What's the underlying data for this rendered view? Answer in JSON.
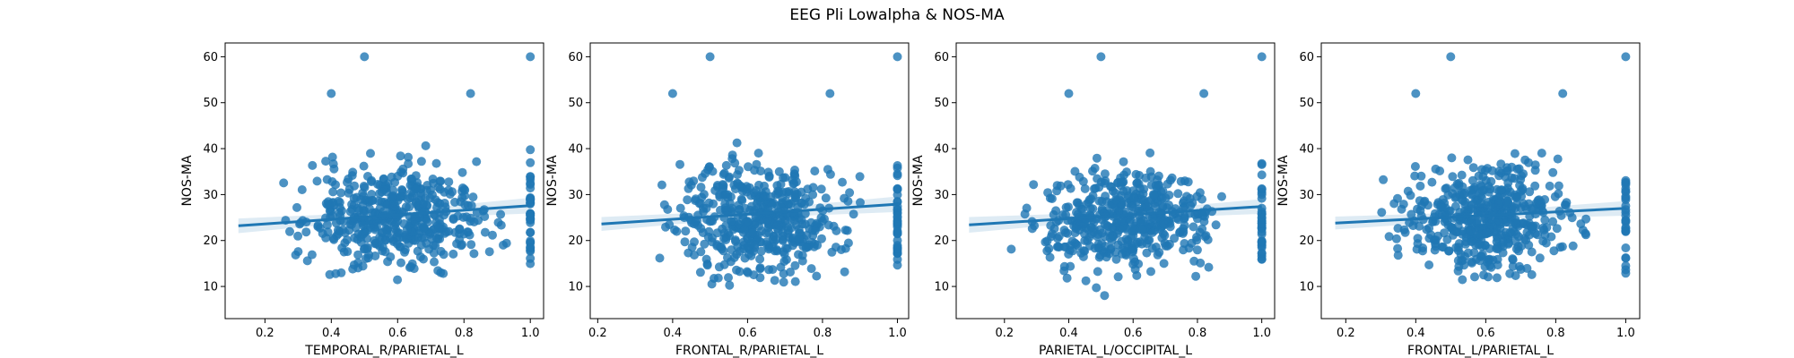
{
  "figure": {
    "title": "EEG Pli Lowalpha & NOS-MA"
  },
  "colors": {
    "series": "#1f77b4"
  },
  "chart_data": [
    {
      "type": "scatter",
      "xlabel": "TEMPORAL_R/PARIETAL_L",
      "ylabel": "NOS-MA",
      "xlim": [
        0.08,
        1.04
      ],
      "ylim": [
        3,
        63
      ],
      "xticks": [
        "0.2",
        "0.4",
        "0.6",
        "0.8",
        "1.0"
      ],
      "yticks": [
        "10",
        "20",
        "30",
        "40",
        "50",
        "60"
      ],
      "regression": {
        "x": [
          0.12,
          1.0
        ],
        "y": [
          23.2,
          27.6
        ],
        "ci_halfwidth": [
          1.6,
          0.8,
          1.7
        ]
      },
      "seed": 11
    },
    {
      "type": "scatter",
      "xlabel": "FRONTAL_R/PARIETAL_L",
      "ylabel": "NOS-MA",
      "xlim": [
        0.18,
        1.03
      ],
      "ylim": [
        3,
        63
      ],
      "xticks": [
        "0.2",
        "0.4",
        "0.6",
        "0.8",
        "1.0"
      ],
      "yticks": [
        "10",
        "20",
        "30",
        "40",
        "50",
        "60"
      ],
      "regression": {
        "x": [
          0.21,
          1.0
        ],
        "y": [
          23.6,
          27.9
        ],
        "ci_halfwidth": [
          1.5,
          0.8,
          1.7
        ]
      },
      "seed": 23
    },
    {
      "type": "scatter",
      "xlabel": "PARIETAL_L/OCCIPITAL_L",
      "ylabel": "NOS-MA",
      "xlim": [
        0.05,
        1.04
      ],
      "ylim": [
        3,
        63
      ],
      "xticks": [
        "0.2",
        "0.4",
        "0.6",
        "0.8",
        "1.0"
      ],
      "yticks": [
        "10",
        "20",
        "30",
        "40",
        "50",
        "60"
      ],
      "regression": {
        "x": [
          0.09,
          1.0
        ],
        "y": [
          23.4,
          27.4
        ],
        "ci_halfwidth": [
          1.7,
          0.8,
          1.6
        ]
      },
      "seed": 37
    },
    {
      "type": "scatter",
      "xlabel": "FRONTAL_L/PARIETAL_L",
      "ylabel": "NOS-MA",
      "xlim": [
        0.13,
        1.04
      ],
      "ylim": [
        3,
        63
      ],
      "xticks": [
        "0.2",
        "0.4",
        "0.6",
        "0.8",
        "1.0"
      ],
      "yticks": [
        "10",
        "20",
        "30",
        "40",
        "50",
        "60"
      ],
      "regression": {
        "x": [
          0.17,
          1.0
        ],
        "y": [
          23.8,
          27.0
        ],
        "ci_halfwidth": [
          1.4,
          0.8,
          1.6
        ]
      },
      "seed": 53
    }
  ]
}
